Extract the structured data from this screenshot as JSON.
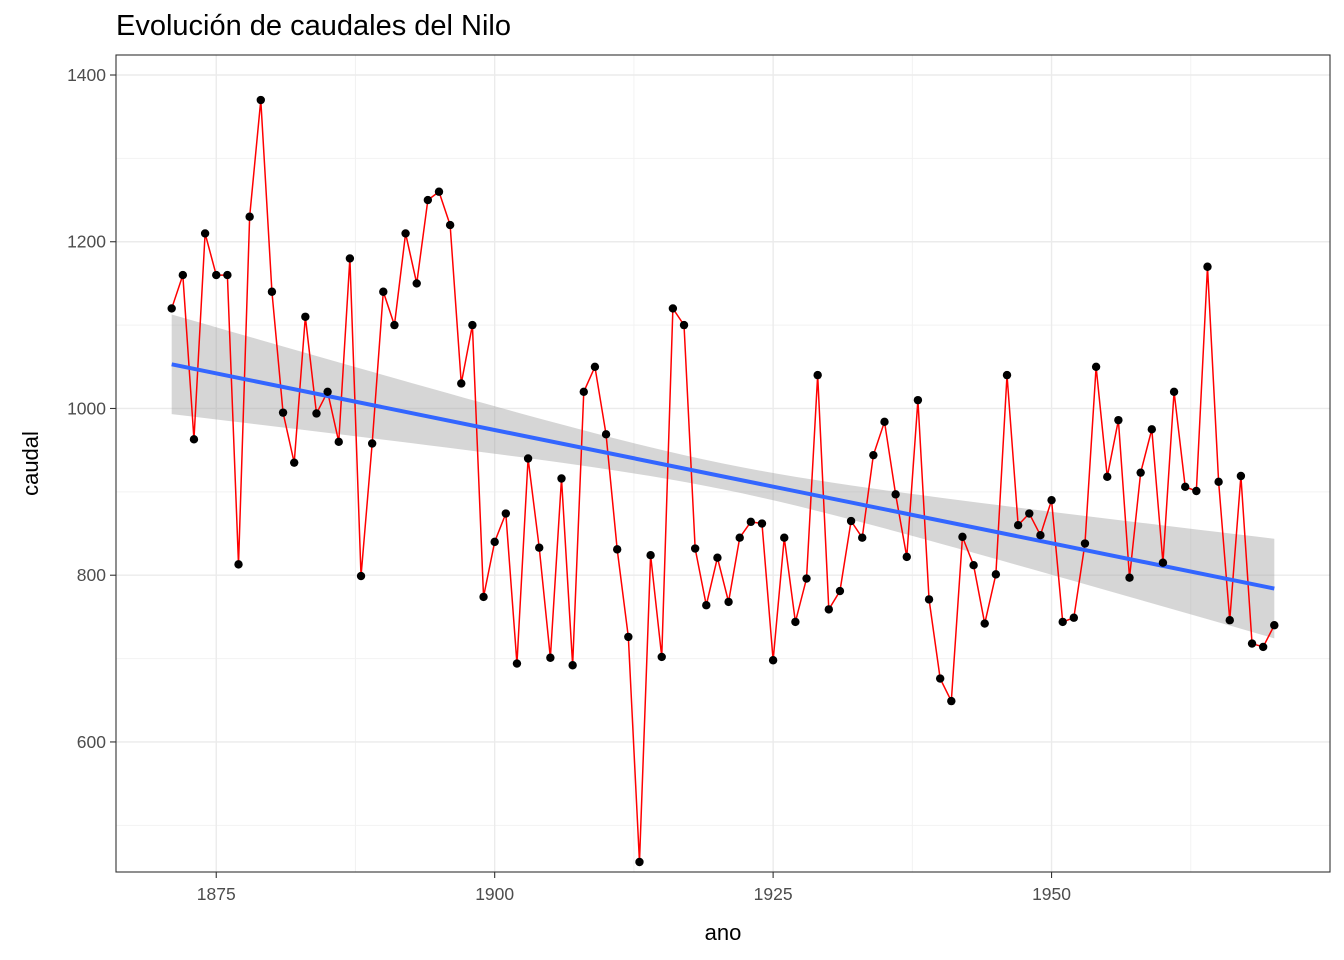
{
  "chart_data": {
    "type": "line",
    "title": "Evolución de caudales del Nilo",
    "xlabel": "ano",
    "ylabel": "caudal",
    "xlim": [
      1866,
      1975
    ],
    "ylim": [
      444,
      1424
    ],
    "x_ticks": [
      1875,
      1900,
      1925,
      1950
    ],
    "y_ticks": [
      600,
      800,
      1000,
      1200,
      1400
    ],
    "x_tick_labels": [
      "1875",
      "1900",
      "1925",
      "1950"
    ],
    "y_tick_labels": [
      "600",
      "800",
      "1000",
      "1200",
      "1400"
    ],
    "grid": true,
    "legend": "none",
    "x": [
      1871,
      1872,
      1873,
      1874,
      1875,
      1876,
      1877,
      1878,
      1879,
      1880,
      1881,
      1882,
      1883,
      1884,
      1885,
      1886,
      1887,
      1888,
      1889,
      1890,
      1891,
      1892,
      1893,
      1894,
      1895,
      1896,
      1897,
      1898,
      1899,
      1900,
      1901,
      1902,
      1903,
      1904,
      1905,
      1906,
      1907,
      1908,
      1909,
      1910,
      1911,
      1912,
      1913,
      1914,
      1915,
      1916,
      1917,
      1918,
      1919,
      1920,
      1921,
      1922,
      1923,
      1924,
      1925,
      1926,
      1927,
      1928,
      1929,
      1930,
      1931,
      1932,
      1933,
      1934,
      1935,
      1936,
      1937,
      1938,
      1939,
      1940,
      1941,
      1942,
      1943,
      1944,
      1945,
      1946,
      1947,
      1948,
      1949,
      1950,
      1951,
      1952,
      1953,
      1954,
      1955,
      1956,
      1957,
      1958,
      1959,
      1960,
      1961,
      1962,
      1963,
      1964,
      1965,
      1966,
      1967,
      1968,
      1969,
      1970
    ],
    "series": [
      {
        "values": [
          1120,
          1160,
          963,
          1210,
          1160,
          1160,
          813,
          1230,
          1370,
          1140,
          995,
          935,
          1110,
          994,
          1020,
          960,
          1180,
          799,
          958,
          1140,
          1100,
          1210,
          1150,
          1250,
          1260,
          1220,
          1030,
          1100,
          774,
          840,
          874,
          694,
          940,
          833,
          701,
          916,
          692,
          1020,
          1050,
          969,
          831,
          726,
          456,
          824,
          702,
          1120,
          1100,
          832,
          764,
          821,
          768,
          845,
          864,
          862,
          698,
          845,
          744,
          796,
          1040,
          759,
          781,
          865,
          845,
          944,
          984,
          897,
          822,
          1010,
          771,
          676,
          649,
          846,
          812,
          742,
          801,
          1040,
          860,
          874,
          848,
          890,
          744,
          749,
          838,
          1050,
          918,
          986,
          797,
          923,
          975,
          815,
          1020,
          906,
          901,
          1170,
          912,
          746,
          919,
          718,
          714,
          740
        ],
        "color": "#ff0000",
        "point_color": "#000000"
      }
    ],
    "trend": {
      "method": "lm",
      "start": [
        1871,
        1053
      ],
      "end": [
        1970,
        784
      ],
      "ci_lower_start": 993,
      "ci_upper_start": 1112,
      "ci_lower_mid": 944,
      "ci_upper_mid": 975,
      "ci_lower_end": 724,
      "ci_upper_end": 844,
      "color": "#3366ff",
      "band_color": "#999999"
    }
  }
}
